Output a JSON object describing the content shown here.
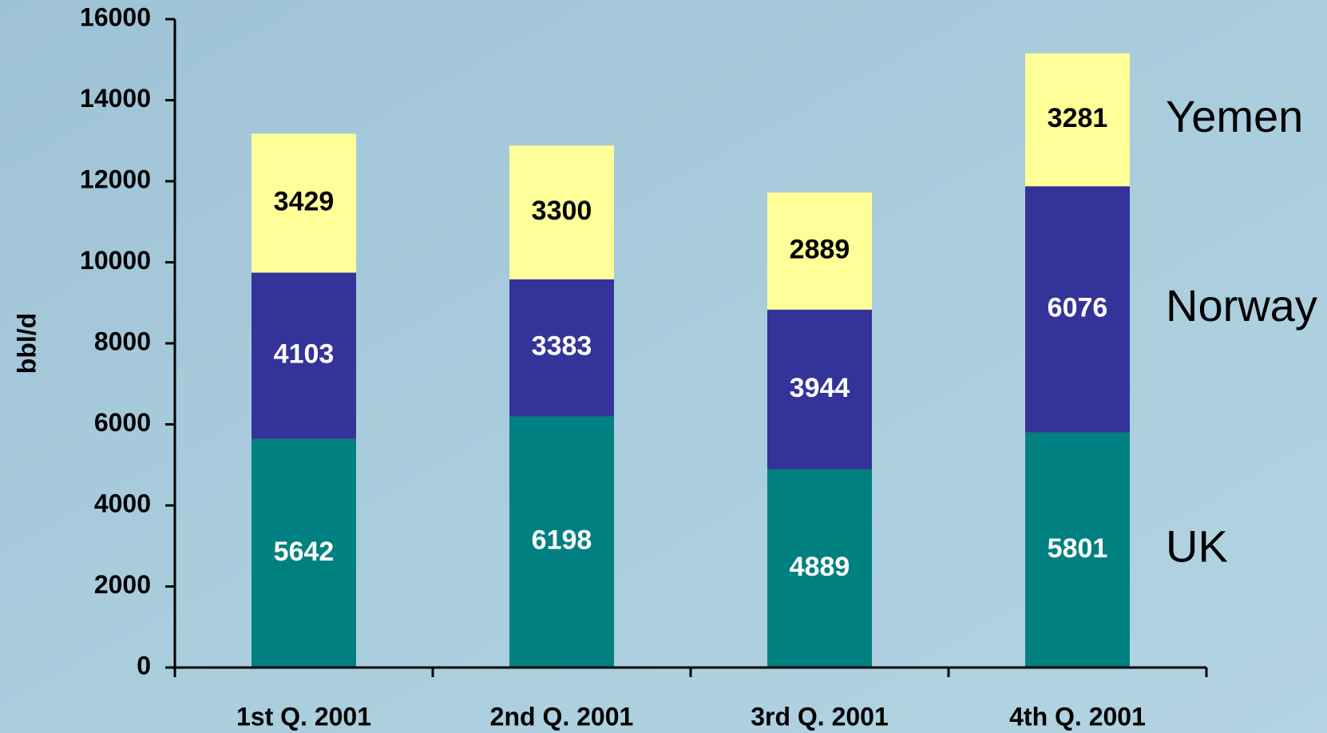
{
  "chart_data": {
    "type": "stacked_bar",
    "y_label": "bbl/d",
    "categories": [
      "1st Q. 2001",
      "2nd Q. 2001",
      "3rd Q. 2001",
      "4th Q. 2001"
    ],
    "series": [
      {
        "name": "UK",
        "color": "#008080",
        "label_color": "#ffffff",
        "values": [
          5642,
          6198,
          4889,
          5801
        ]
      },
      {
        "name": "Norway",
        "color": "#333399",
        "label_color": "#ffffff",
        "values": [
          4103,
          3383,
          3944,
          6076
        ]
      },
      {
        "name": "Yemen",
        "color": "#ffff99",
        "label_color": "#000000",
        "values": [
          3429,
          3300,
          2889,
          3281
        ]
      }
    ],
    "ylim": [
      0,
      16000
    ],
    "yticks": [
      0,
      2000,
      4000,
      6000,
      8000,
      10000,
      12000,
      14000,
      16000
    ],
    "legend": "right"
  }
}
